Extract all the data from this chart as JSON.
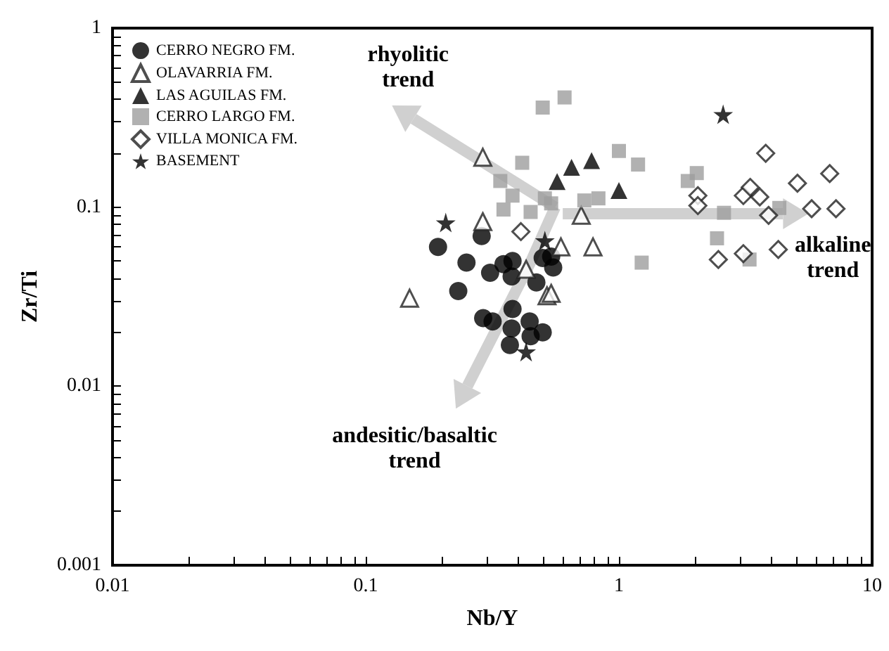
{
  "chart_data": {
    "type": "scatter",
    "xlabel": "Nb/Y",
    "ylabel": "Zr/Ti",
    "log": "xy",
    "legend": "top left",
    "grid": false,
    "xlim": [
      0.01,
      10
    ],
    "ylim": [
      0.001,
      1
    ],
    "xticks": [
      0.01,
      {
        "value": 0.02,
        "label": null
      },
      {
        "value": 0.03,
        "label": null
      },
      {
        "value": 0.04,
        "label": null
      },
      {
        "value": 0.05,
        "label": null
      },
      {
        "value": 0.06,
        "label": null
      },
      {
        "value": 0.07,
        "label": null
      },
      {
        "value": 0.08,
        "label": null
      },
      {
        "value": 0.09,
        "label": null
      },
      0.1,
      {
        "value": 0.2,
        "label": null
      },
      {
        "value": 0.3,
        "label": null
      },
      {
        "value": 0.4,
        "label": null
      },
      {
        "value": 0.5,
        "label": null
      },
      {
        "value": 0.6,
        "label": null
      },
      {
        "value": 0.7,
        "label": null
      },
      {
        "value": 0.8,
        "label": null
      },
      {
        "value": 0.9,
        "label": null
      },
      1,
      {
        "value": 2,
        "label": null
      },
      {
        "value": 3,
        "label": null
      },
      {
        "value": 4,
        "label": null
      },
      {
        "value": 5,
        "label": null
      },
      {
        "value": 6,
        "label": null
      },
      {
        "value": 7,
        "label": null
      },
      {
        "value": 8,
        "label": null
      },
      {
        "value": 9,
        "label": null
      },
      10
    ],
    "yticks": [
      0.001,
      {
        "value": 0.002,
        "label": null
      },
      {
        "value": 0.003,
        "label": null
      },
      {
        "value": 0.004,
        "label": null
      },
      {
        "value": 0.005,
        "label": null
      },
      {
        "value": 0.006,
        "label": null
      },
      {
        "value": 0.007,
        "label": null
      },
      {
        "value": 0.008,
        "label": null
      },
      {
        "value": 0.009,
        "label": null
      },
      0.01,
      {
        "value": 0.02,
        "label": null
      },
      {
        "value": 0.03,
        "label": null
      },
      {
        "value": 0.04,
        "label": null
      },
      {
        "value": 0.05,
        "label": null
      },
      {
        "value": 0.06,
        "label": null
      },
      {
        "value": 0.07,
        "label": null
      },
      {
        "value": 0.08,
        "label": null
      },
      {
        "value": 0.09,
        "label": null
      },
      0.1,
      {
        "value": 0.2,
        "label": null
      },
      {
        "value": 0.3,
        "label": null
      },
      {
        "value": 0.4,
        "label": null
      },
      {
        "value": 0.5,
        "label": null
      },
      {
        "value": 0.6,
        "label": null
      },
      {
        "value": 0.7,
        "label": null
      },
      {
        "value": 0.8,
        "label": null
      },
      {
        "value": 0.9,
        "label": null
      },
      1
    ],
    "series": [
      {
        "name": "CERRO NEGRO FM.",
        "color": "#000000",
        "marker": "circle",
        "x": [
          0.193,
          0.287,
          0.25,
          0.232,
          0.31,
          0.35,
          0.38,
          0.377,
          0.472,
          0.5,
          0.55,
          0.54,
          0.291,
          0.317,
          0.38,
          0.377,
          0.371,
          0.444,
          0.448,
          0.5
        ],
        "values": [
          0.06,
          0.069,
          0.049,
          0.034,
          0.043,
          0.048,
          0.05,
          0.041,
          0.038,
          0.052,
          0.046,
          0.053,
          0.024,
          0.023,
          0.027,
          0.021,
          0.017,
          0.023,
          0.019,
          0.02
        ]
      },
      {
        "name": "OLAVARRIA FM.",
        "color": "#ffffff",
        "marker": "triangle",
        "x": [
          0.29,
          0.29,
          0.149,
          0.43,
          0.52,
          0.54,
          0.59,
          0.79,
          0.71
        ],
        "values": [
          0.19,
          0.083,
          0.031,
          0.045,
          0.032,
          0.033,
          0.06,
          0.06,
          0.09
        ]
      },
      {
        "name": "LAS AGUILAS FM.",
        "color": "#000000",
        "marker": "triangle",
        "x": [
          0.57,
          0.65,
          0.78,
          1.0
        ],
        "values": [
          0.139,
          0.167,
          0.182,
          0.124
        ]
      },
      {
        "name": "CERRO LARGO FM.",
        "color": "#9e9e9e",
        "marker": "square",
        "x": [
          0.5,
          0.61,
          0.415,
          0.34,
          0.38,
          0.35,
          0.448,
          0.51,
          0.54,
          0.73,
          0.83,
          1.0,
          1.19,
          1.23,
          1.87,
          2.03,
          2.6,
          2.44,
          3.28,
          4.3
        ],
        "values": [
          0.36,
          0.41,
          0.177,
          0.14,
          0.116,
          0.097,
          0.094,
          0.112,
          0.105,
          0.109,
          0.112,
          0.206,
          0.173,
          0.049,
          0.14,
          0.155,
          0.093,
          0.067,
          0.051,
          0.099
        ]
      },
      {
        "name": "VILLA MONICA FM.",
        "color": "#ffffff",
        "marker": "diamond",
        "x": [
          0.41,
          2.05,
          2.05,
          3.1,
          3.3,
          3.6,
          3.8,
          3.9,
          5.07,
          5.77,
          6.8,
          7.2,
          2.47,
          3.1,
          4.26
        ],
        "values": [
          0.073,
          0.116,
          0.102,
          0.116,
          0.129,
          0.114,
          0.2,
          0.09,
          0.136,
          0.098,
          0.154,
          0.098,
          0.051,
          0.055,
          0.058
        ]
      },
      {
        "name": "BASEMENT",
        "color": "#000000",
        "marker": "star",
        "x": [
          0.207,
          0.51,
          0.43,
          2.58
        ],
        "values": [
          0.082,
          0.065,
          0.0156,
          0.33
        ]
      }
    ],
    "annotations": [
      "rhyolitic trend",
      "alkaline trend",
      "andesitic/basaltic trend"
    ]
  }
}
